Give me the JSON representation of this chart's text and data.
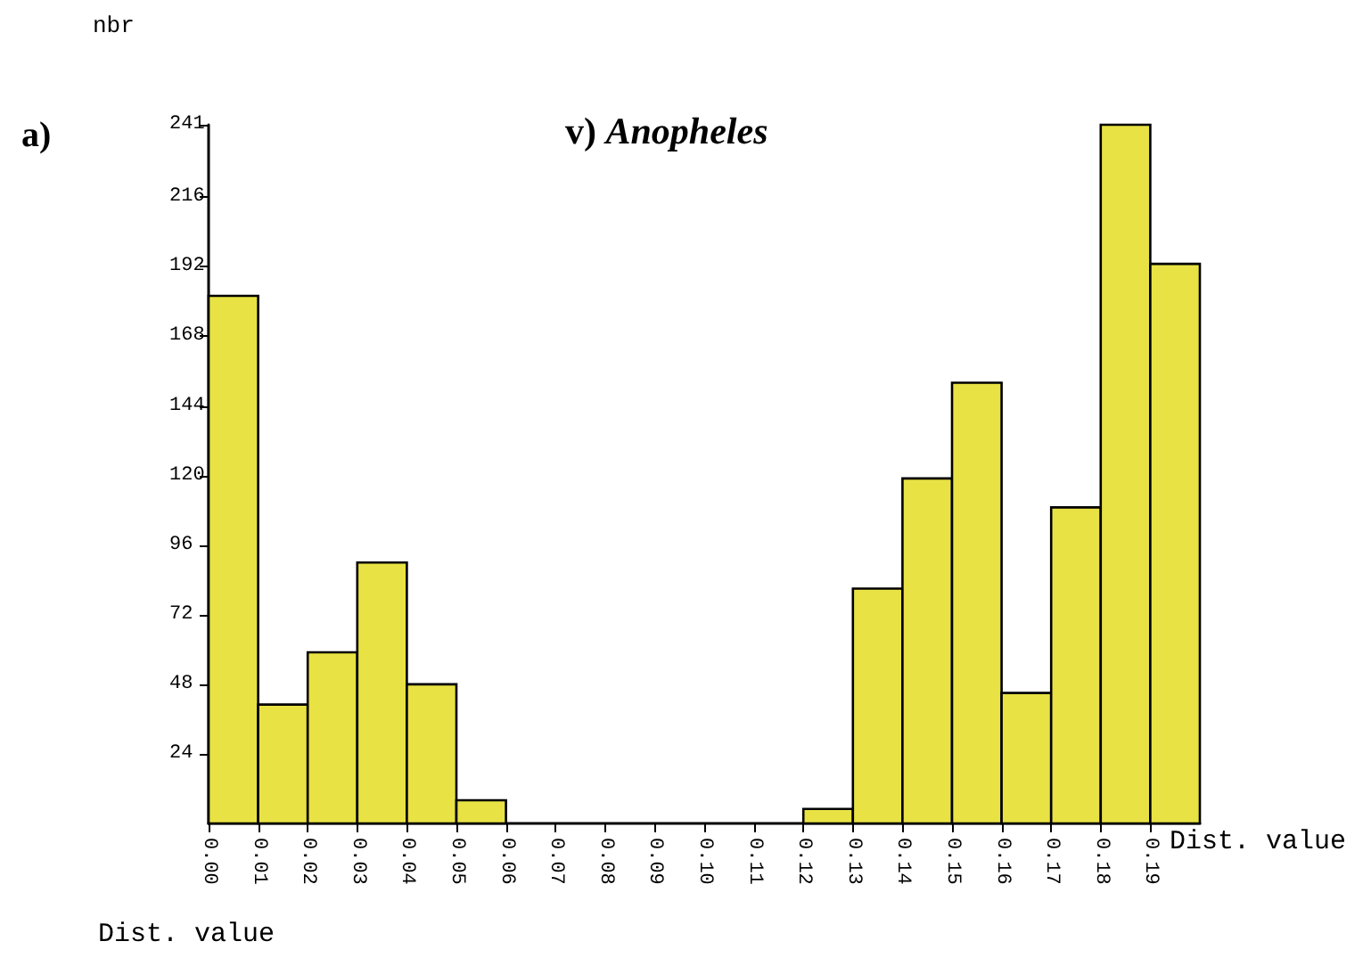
{
  "chart_data": {
    "type": "histogram",
    "title": "v) Anopheles",
    "ylabel": "nbr",
    "xlabel": "Dist. value",
    "annotations": [
      "a)",
      "Dist. value"
    ],
    "bins": [
      0,
      0.01,
      0.02,
      0.03,
      0.04,
      0.05,
      0.06,
      0.07,
      0.08,
      0.09,
      0.1,
      0.11,
      0.12,
      0.13,
      0.14,
      0.15,
      0.16,
      0.17,
      0.18,
      0.19,
      0.2
    ],
    "values": [
      182,
      41,
      59,
      90,
      48,
      8,
      0,
      0,
      0,
      0,
      0,
      0,
      5,
      81,
      119,
      152,
      45,
      109,
      241,
      193
    ],
    "color": "#e8e244",
    "xlim": [
      0,
      0.2
    ],
    "xticks": [
      {
        "value": 0,
        "label": "0.00"
      },
      {
        "value": 0.01,
        "label": "0.01"
      },
      {
        "value": 0.02,
        "label": "0.02"
      },
      {
        "value": 0.03,
        "label": "0.03"
      },
      {
        "value": 0.04,
        "label": "0.04"
      },
      {
        "value": 0.05,
        "label": "0.05"
      },
      {
        "value": 0.06,
        "label": "0.06"
      },
      {
        "value": 0.07,
        "label": "0.07"
      },
      {
        "value": 0.08,
        "label": "0.08"
      },
      {
        "value": 0.09,
        "label": "0.09"
      },
      {
        "value": 0.1,
        "label": "0.10"
      },
      {
        "value": 0.11,
        "label": "0.11"
      },
      {
        "value": 0.12,
        "label": "0.12"
      },
      {
        "value": 0.13,
        "label": "0.13"
      },
      {
        "value": 0.14,
        "label": "0.14"
      },
      {
        "value": 0.15,
        "label": "0.15"
      },
      {
        "value": 0.16,
        "label": "0.16"
      },
      {
        "value": 0.17,
        "label": "0.17"
      },
      {
        "value": 0.18,
        "label": "0.18"
      },
      {
        "value": 0.19,
        "label": "0.19"
      }
    ],
    "ylim": [
      0,
      241
    ],
    "yticks": [
      24,
      48,
      72,
      96,
      120,
      144,
      168,
      192,
      216,
      241
    ],
    "grid": false
  }
}
